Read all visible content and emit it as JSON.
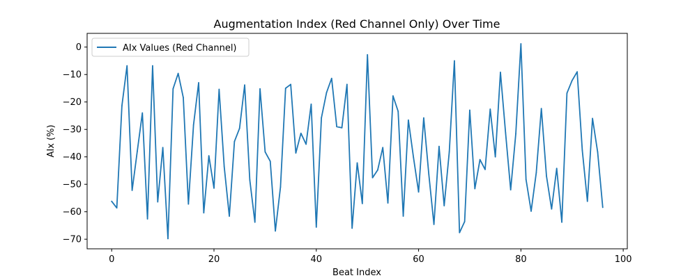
{
  "chart_data": {
    "type": "line",
    "title": "Augmentation Index (Red Channel Only) Over Time",
    "xlabel": "Beat Index",
    "ylabel": "AIx (%)",
    "xlim": [
      -4.8,
      100.8
    ],
    "ylim": [
      -73.5,
      5.0
    ],
    "xticks": [
      0,
      20,
      40,
      60,
      80,
      100
    ],
    "yticks": [
      0,
      -10,
      -20,
      -30,
      -40,
      -50,
      -60,
      -70
    ],
    "grid": false,
    "legend": "top-left",
    "series": [
      {
        "name": "AIx Values (Red Channel)",
        "color": "#1f77b4",
        "x": [
          0,
          1,
          2,
          3,
          4,
          5,
          6,
          7,
          8,
          9,
          10,
          11,
          12,
          13,
          14,
          15,
          16,
          17,
          18,
          19,
          20,
          21,
          22,
          23,
          24,
          25,
          26,
          27,
          28,
          29,
          30,
          31,
          32,
          33,
          34,
          35,
          36,
          37,
          38,
          39,
          40,
          41,
          42,
          43,
          44,
          45,
          46,
          47,
          48,
          49,
          50,
          51,
          52,
          53,
          54,
          55,
          56,
          57,
          58,
          59,
          60,
          61,
          62,
          63,
          64,
          65,
          66,
          67,
          68,
          69,
          70,
          71,
          72,
          73,
          74,
          75,
          76,
          77,
          78,
          79,
          80,
          81,
          82,
          83,
          84,
          85,
          86,
          87,
          88,
          89,
          90,
          91,
          92,
          93,
          94,
          95,
          96
        ],
        "values": [
          -56.2,
          -58.6,
          -21.4,
          -6.8,
          -52.2,
          -38.0,
          -24.0,
          -62.6,
          -6.8,
          -56.4,
          -36.6,
          -69.8,
          -15.2,
          -9.6,
          -18.4,
          -57.2,
          -28.4,
          -13.0,
          -60.4,
          -39.6,
          -51.4,
          -15.4,
          -43.6,
          -61.6,
          -34.4,
          -29.6,
          -13.8,
          -48.4,
          -63.8,
          -15.2,
          -38.2,
          -41.6,
          -67.0,
          -51.0,
          -15.0,
          -13.6,
          -38.6,
          -31.4,
          -35.4,
          -20.8,
          -65.6,
          -25.8,
          -16.6,
          -11.4,
          -29.0,
          -29.4,
          -13.6,
          -66.0,
          -42.2,
          -57.0,
          -2.8,
          -47.6,
          -44.8,
          -36.6,
          -56.8,
          -17.8,
          -23.4,
          -61.6,
          -26.6,
          -40.2,
          -52.8,
          -25.8,
          -46.4,
          -64.6,
          -36.2,
          -57.8,
          -38.2,
          -5.0,
          -67.6,
          -63.6,
          -23.0,
          -51.6,
          -41.0,
          -44.6,
          -22.6,
          -40.0,
          -9.2,
          -31.2,
          -52.0,
          -31.6,
          1.2,
          -48.2,
          -59.8,
          -45.8,
          -22.4,
          -47.0,
          -59.0,
          -44.2,
          -63.8,
          -16.8,
          -12.2,
          -9.0,
          -37.6,
          -56.2,
          -26.0,
          -38.2,
          -58.4
        ]
      }
    ]
  }
}
